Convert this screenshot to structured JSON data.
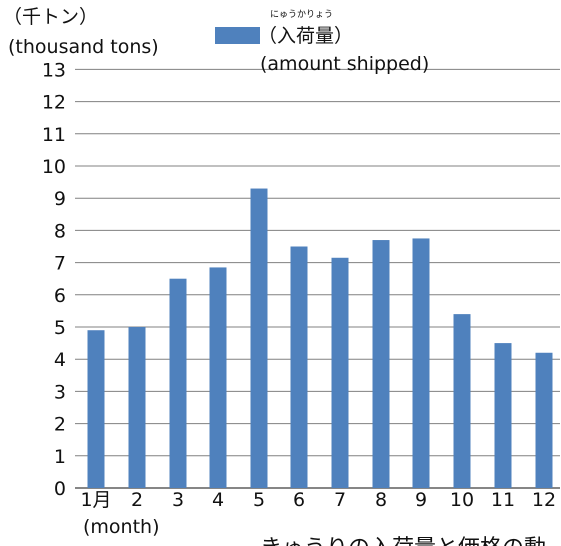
{
  "chart_data": {
    "type": "bar",
    "categories": [
      "1月",
      "2",
      "3",
      "4",
      "5",
      "6",
      "7",
      "8",
      "9",
      "10",
      "11",
      "12"
    ],
    "values": [
      4.9,
      5.0,
      6.5,
      6.85,
      9.3,
      7.5,
      7.15,
      7.7,
      7.75,
      5.4,
      4.5,
      4.2
    ],
    "ylim": [
      0,
      13
    ],
    "yticks": [
      0,
      1,
      2,
      3,
      4,
      5,
      6,
      7,
      8,
      9,
      10,
      11,
      12,
      13
    ],
    "grid": true,
    "series": [
      {
        "label_ruby": "にゅうかりょう",
        "label_line1": "（入荷量）",
        "label_line2": "(amount shipped)",
        "color": "#4f81bd"
      }
    ]
  },
  "axes": {
    "y_unit_line1": "（千トン）",
    "y_unit_line2": "(thousand tons)",
    "x_unit": "(month)"
  },
  "caption": {
    "partial_text": "きゅうりの入荷量と価格の動"
  },
  "colors": {
    "bar": "#4f81bd",
    "grid": "#808080",
    "axis": "#5f5f5f",
    "text": "#111111"
  }
}
